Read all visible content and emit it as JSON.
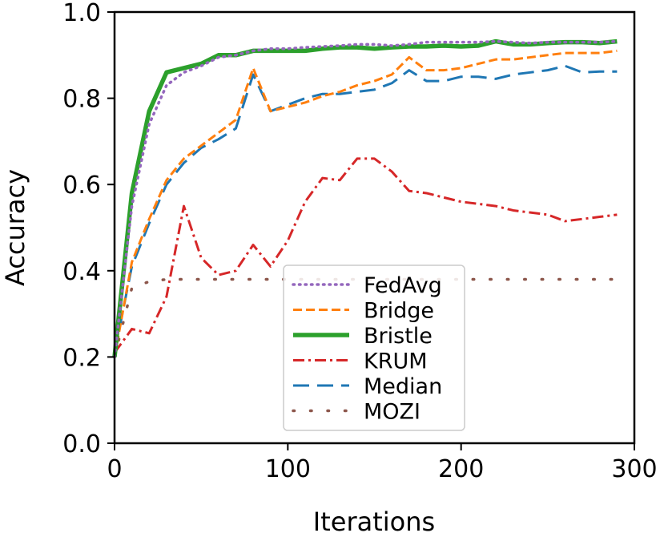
{
  "chart_data": {
    "type": "line",
    "title": "",
    "xlabel": "Iterations",
    "ylabel": "Accuracy",
    "xlim": [
      0,
      300
    ],
    "ylim": [
      0.0,
      1.0
    ],
    "xticks": [
      "0",
      "100",
      "200",
      "300"
    ],
    "yticks": [
      "0.0",
      "0.2",
      "0.4",
      "0.6",
      "0.8",
      "1.0"
    ],
    "grid": false,
    "legend_position": "lower-center",
    "series": [
      {
        "name": "FedAvg",
        "color": "#9467bd",
        "style": "dotted",
        "x": [
          0,
          10,
          20,
          30,
          40,
          50,
          60,
          70,
          80,
          90,
          100,
          110,
          120,
          130,
          140,
          150,
          160,
          170,
          180,
          190,
          200,
          210,
          220,
          230,
          240,
          250,
          260,
          270,
          280,
          290
        ],
        "y": [
          0.2,
          0.55,
          0.74,
          0.83,
          0.86,
          0.875,
          0.895,
          0.9,
          0.91,
          0.915,
          0.915,
          0.918,
          0.92,
          0.922,
          0.925,
          0.925,
          0.922,
          0.925,
          0.93,
          0.93,
          0.93,
          0.93,
          0.932,
          0.93,
          0.928,
          0.93,
          0.93,
          0.93,
          0.93,
          0.932
        ]
      },
      {
        "name": "Bridge",
        "color": "#ff7f0e",
        "style": "dashed",
        "x": [
          0,
          10,
          20,
          30,
          40,
          50,
          60,
          70,
          80,
          90,
          100,
          110,
          120,
          130,
          140,
          150,
          160,
          170,
          180,
          190,
          200,
          210,
          220,
          230,
          240,
          250,
          260,
          270,
          280,
          290
        ],
        "y": [
          0.2,
          0.42,
          0.52,
          0.61,
          0.66,
          0.69,
          0.72,
          0.75,
          0.87,
          0.77,
          0.78,
          0.79,
          0.805,
          0.815,
          0.83,
          0.84,
          0.855,
          0.895,
          0.865,
          0.865,
          0.87,
          0.88,
          0.89,
          0.89,
          0.895,
          0.9,
          0.905,
          0.905,
          0.905,
          0.91
        ]
      },
      {
        "name": "Bristle",
        "color": "#2ca02c",
        "style": "solid",
        "x": [
          0,
          10,
          20,
          30,
          40,
          50,
          60,
          70,
          80,
          90,
          100,
          110,
          120,
          130,
          140,
          150,
          160,
          170,
          180,
          190,
          200,
          210,
          220,
          230,
          240,
          250,
          260,
          270,
          280,
          290
        ],
        "y": [
          0.2,
          0.58,
          0.77,
          0.86,
          0.87,
          0.88,
          0.9,
          0.9,
          0.91,
          0.91,
          0.91,
          0.91,
          0.915,
          0.918,
          0.918,
          0.915,
          0.918,
          0.92,
          0.92,
          0.922,
          0.92,
          0.922,
          0.932,
          0.925,
          0.925,
          0.928,
          0.93,
          0.93,
          0.928,
          0.932
        ]
      },
      {
        "name": "KRUM",
        "color": "#d62728",
        "style": "dashdot",
        "x": [
          0,
          10,
          20,
          30,
          40,
          50,
          60,
          70,
          80,
          90,
          100,
          110,
          120,
          130,
          140,
          150,
          160,
          170,
          180,
          190,
          200,
          210,
          220,
          230,
          240,
          250,
          260,
          270,
          280,
          290
        ],
        "y": [
          0.21,
          0.265,
          0.255,
          0.34,
          0.55,
          0.43,
          0.39,
          0.4,
          0.46,
          0.41,
          0.47,
          0.56,
          0.615,
          0.61,
          0.66,
          0.66,
          0.63,
          0.585,
          0.58,
          0.57,
          0.56,
          0.555,
          0.55,
          0.54,
          0.535,
          0.53,
          0.515,
          0.52,
          0.525,
          0.53
        ]
      },
      {
        "name": "Median",
        "color": "#1f77b4",
        "style": "longdash",
        "x": [
          0,
          10,
          20,
          30,
          40,
          50,
          60,
          70,
          80,
          90,
          100,
          110,
          120,
          130,
          140,
          150,
          160,
          170,
          180,
          190,
          200,
          210,
          220,
          230,
          240,
          250,
          260,
          270,
          280,
          290
        ],
        "y": [
          0.21,
          0.41,
          0.51,
          0.6,
          0.65,
          0.685,
          0.705,
          0.73,
          0.855,
          0.77,
          0.785,
          0.8,
          0.81,
          0.81,
          0.815,
          0.82,
          0.835,
          0.865,
          0.84,
          0.84,
          0.85,
          0.85,
          0.845,
          0.855,
          0.86,
          0.865,
          0.875,
          0.86,
          0.862,
          0.862
        ]
      },
      {
        "name": "MOZI",
        "color": "#8c564b",
        "style": "sparse-dotted",
        "x": [
          0,
          10,
          20,
          30,
          40,
          50,
          60,
          70,
          80,
          90,
          100,
          110,
          120,
          130,
          140,
          150,
          160,
          170,
          180,
          190,
          200,
          210,
          220,
          230,
          240,
          250,
          260,
          270,
          280,
          290
        ],
        "y": [
          0.2,
          0.36,
          0.375,
          0.38,
          0.38,
          0.38,
          0.38,
          0.38,
          0.38,
          0.38,
          0.38,
          0.38,
          0.38,
          0.38,
          0.38,
          0.38,
          0.38,
          0.38,
          0.38,
          0.38,
          0.38,
          0.38,
          0.38,
          0.38,
          0.38,
          0.38,
          0.38,
          0.38,
          0.38,
          0.38
        ]
      }
    ]
  }
}
